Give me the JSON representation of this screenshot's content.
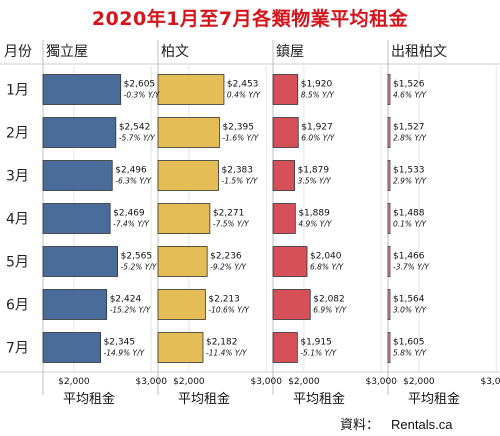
{
  "title": "2020年1月至7月各類物業平均租金",
  "corner_label": "月份",
  "source": {
    "label": "資料：",
    "value": "Rentals.ca"
  },
  "chart_data": {
    "type": "bar",
    "orientation": "horizontal",
    "title": "2020年1月至7月各類物業平均租金",
    "categories": [
      "1月",
      "2月",
      "3月",
      "4月",
      "5月",
      "6月",
      "7月"
    ],
    "xlabel": "平均租金",
    "xlim": [
      1600,
      3000
    ],
    "xticks": [
      "$2,000",
      "$3,000"
    ],
    "grid": true,
    "panels": [
      {
        "name": "獨立屋",
        "color": "#4a6c9b",
        "values": [
          2605,
          2542,
          2496,
          2469,
          2565,
          2424,
          2345
        ],
        "value_labels": [
          "$2,605",
          "$2,542",
          "$2,496",
          "$2,469",
          "$2,565",
          "$2,424",
          "$2,345"
        ],
        "yoy_labels": [
          "-0.3% Y/Y",
          "-5.7% Y/Y",
          "-6.3% Y/Y",
          "-7.4% Y/Y",
          "-5.2% Y/Y",
          "-15.2% Y/Y",
          "-14.9% Y/Y"
        ]
      },
      {
        "name": "柏文",
        "color": "#e4bd57",
        "values": [
          2453,
          2395,
          2383,
          2271,
          2236,
          2213,
          2182
        ],
        "value_labels": [
          "$2,453",
          "$2,395",
          "$2,383",
          "$2,271",
          "$2,236",
          "$2,213",
          "$2,182"
        ],
        "yoy_labels": [
          "0.4% Y/Y",
          "-1.6% Y/Y",
          "-1.5% Y/Y",
          "-7.5% Y/Y",
          "-9.2% Y/Y",
          "-10.6% Y/Y",
          "-11.4% Y/Y"
        ]
      },
      {
        "name": "鎮屋",
        "color": "#d6505a",
        "values": [
          1920,
          1927,
          1879,
          1889,
          2040,
          2082,
          1915
        ],
        "value_labels": [
          "$1,920",
          "$1,927",
          "$1,879",
          "$1,889",
          "$2,040",
          "$2,082",
          "$1,915"
        ],
        "yoy_labels": [
          "8.5% Y/Y",
          "6.0% Y/Y",
          "3.5% Y/Y",
          "4.9% Y/Y",
          "6.8% Y/Y",
          "6.9% Y/Y",
          "-5.1% Y/Y"
        ]
      },
      {
        "name": "出租柏文",
        "color": "#f09aa6",
        "values": [
          1526,
          1527,
          1533,
          1488,
          1466,
          1564,
          1605
        ],
        "value_labels": [
          "$1,526",
          "$1,527",
          "$1,533",
          "$1,488",
          "$1,466",
          "$1,564",
          "$1,605"
        ],
        "yoy_labels": [
          "4.6% Y/Y",
          "2.8% Y/Y",
          "2.9% Y/Y",
          "0.1% Y/Y",
          "-3.7% Y/Y",
          "3.0% Y/Y",
          "5.8% Y/Y"
        ]
      }
    ]
  }
}
